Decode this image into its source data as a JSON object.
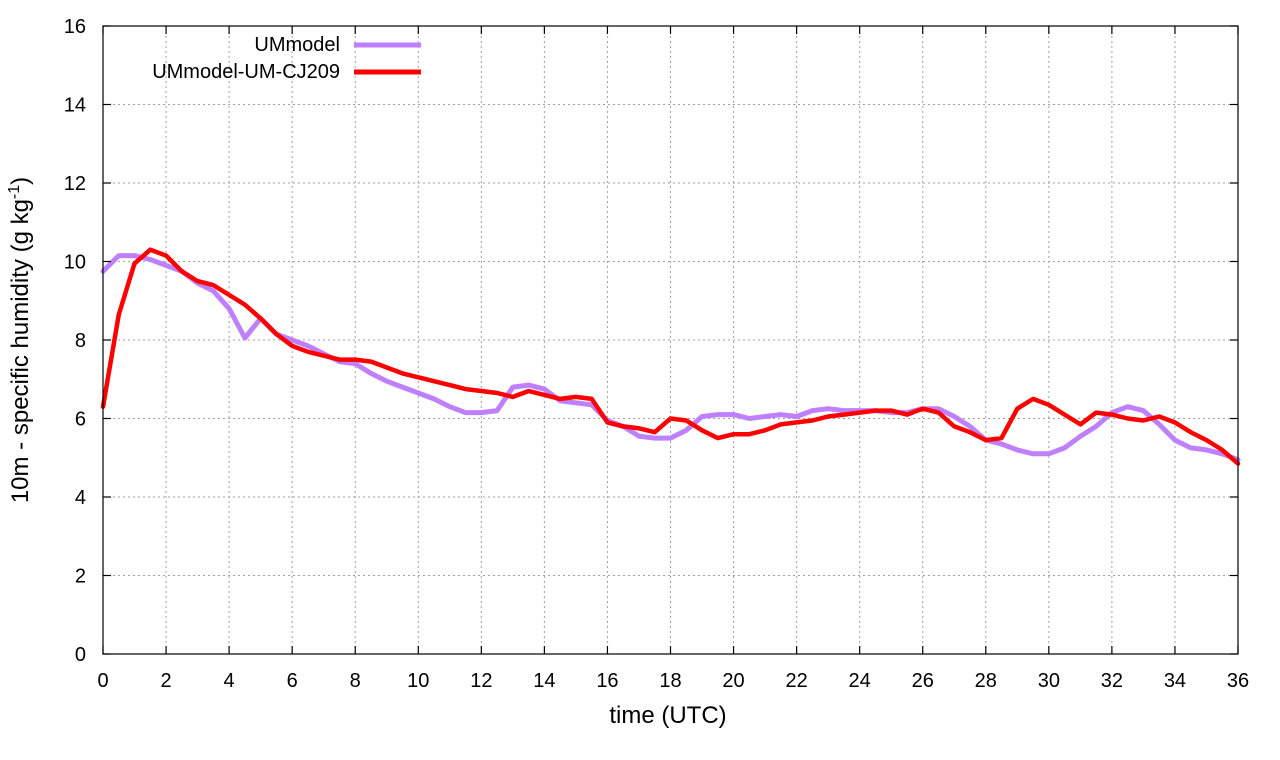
{
  "chart_data": {
    "type": "line",
    "title": "",
    "xlabel": "time (UTC)",
    "ylabel": {
      "main": "10m - specific humidity (g kg",
      "sup": "-1",
      "tail": ")"
    },
    "xlim": [
      0,
      36
    ],
    "ylim": [
      0,
      16
    ],
    "x_ticks": [
      0,
      2,
      4,
      6,
      8,
      10,
      12,
      14,
      16,
      18,
      20,
      22,
      24,
      26,
      28,
      30,
      32,
      34,
      36
    ],
    "y_ticks": [
      0,
      2,
      4,
      6,
      8,
      10,
      12,
      14,
      16
    ],
    "grid": true,
    "legend_position": "top-left",
    "x": [
      0,
      0.5,
      1,
      1.5,
      2,
      2.5,
      3,
      3.5,
      4,
      4.5,
      5,
      5.5,
      6,
      6.5,
      7,
      7.5,
      8,
      8.5,
      9,
      9.5,
      10,
      10.5,
      11,
      11.5,
      12,
      12.5,
      13,
      13.5,
      14,
      14.5,
      15,
      15.5,
      16,
      16.5,
      17,
      17.5,
      18,
      18.5,
      19,
      19.5,
      20,
      20.5,
      21,
      21.5,
      22,
      22.5,
      23,
      23.5,
      24,
      24.5,
      25,
      25.5,
      26,
      26.5,
      27,
      27.5,
      28,
      28.5,
      29,
      29.5,
      30,
      30.5,
      31,
      31.5,
      32,
      32.5,
      33,
      33.5,
      34,
      34.5,
      35,
      35.5,
      36
    ],
    "series": [
      {
        "name": "UMmodel",
        "color": "#bf80ff",
        "values": [
          9.75,
          10.15,
          10.15,
          10.05,
          9.9,
          9.75,
          9.45,
          9.25,
          8.8,
          8.05,
          8.55,
          8.15,
          8.0,
          7.85,
          7.65,
          7.45,
          7.4,
          7.15,
          6.95,
          6.8,
          6.65,
          6.5,
          6.3,
          6.15,
          6.15,
          6.2,
          6.8,
          6.85,
          6.75,
          6.45,
          6.4,
          6.35,
          5.95,
          5.8,
          5.55,
          5.5,
          5.5,
          5.7,
          6.05,
          6.1,
          6.1,
          6.0,
          6.05,
          6.1,
          6.05,
          6.2,
          6.25,
          6.2,
          6.2,
          6.2,
          6.15,
          6.15,
          6.25,
          6.25,
          6.05,
          5.8,
          5.45,
          5.35,
          5.2,
          5.1,
          5.1,
          5.25,
          5.55,
          5.8,
          6.15,
          6.3,
          6.2,
          5.85,
          5.45,
          5.25,
          5.2,
          5.1,
          4.95
        ]
      },
      {
        "name": "UMmodel-UM-CJ209",
        "color": "#ff0000",
        "values": [
          6.3,
          8.65,
          9.95,
          10.3,
          10.15,
          9.75,
          9.5,
          9.4,
          9.15,
          8.9,
          8.55,
          8.15,
          7.85,
          7.7,
          7.6,
          7.5,
          7.5,
          7.45,
          7.3,
          7.15,
          7.05,
          6.95,
          6.85,
          6.75,
          6.7,
          6.65,
          6.55,
          6.7,
          6.6,
          6.5,
          6.55,
          6.5,
          5.9,
          5.8,
          5.75,
          5.65,
          6.0,
          5.95,
          5.7,
          5.5,
          5.6,
          5.6,
          5.7,
          5.85,
          5.9,
          5.95,
          6.05,
          6.1,
          6.15,
          6.2,
          6.2,
          6.1,
          6.25,
          6.15,
          5.8,
          5.65,
          5.45,
          5.5,
          6.25,
          6.5,
          6.35,
          6.1,
          5.85,
          6.15,
          6.1,
          6.0,
          5.95,
          6.05,
          5.9,
          5.65,
          5.45,
          5.2,
          4.85
        ]
      }
    ]
  }
}
